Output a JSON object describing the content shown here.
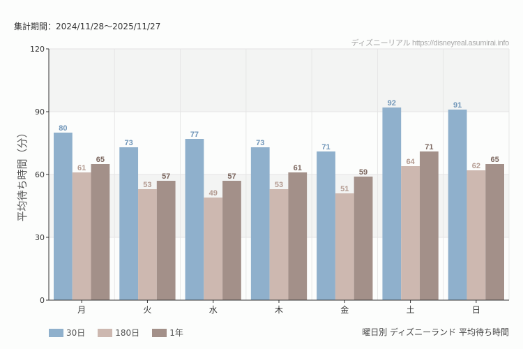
{
  "header": {
    "period": "集計期間：2024/11/28〜2025/11/27",
    "credit": "ディズニーリアル https://disneyreal.asumirai.info"
  },
  "chart_data": {
    "type": "bar",
    "title": "曜日別 ディズニーランド 平均待ち時間",
    "ylabel": "平均待ち時間（分）",
    "xlabel": "",
    "ylim": [
      0,
      120
    ],
    "yticks": [
      0,
      30,
      60,
      90,
      120
    ],
    "grid": true,
    "legend_position": "bottom-left",
    "categories": [
      "月",
      "火",
      "水",
      "木",
      "金",
      "土",
      "日"
    ],
    "series": [
      {
        "name": "30日",
        "color": "#8fb0cc",
        "label_color": "#6f95b8",
        "values": [
          80,
          73,
          77,
          73,
          71,
          92,
          91
        ]
      },
      {
        "name": "180日",
        "color": "#cdb8b0",
        "label_color": "#b39a90",
        "values": [
          61,
          53,
          49,
          53,
          51,
          64,
          62
        ]
      },
      {
        "name": "1年",
        "color": "#a39089",
        "label_color": "#7a655d",
        "values": [
          65,
          57,
          57,
          61,
          59,
          71,
          65
        ]
      }
    ]
  }
}
